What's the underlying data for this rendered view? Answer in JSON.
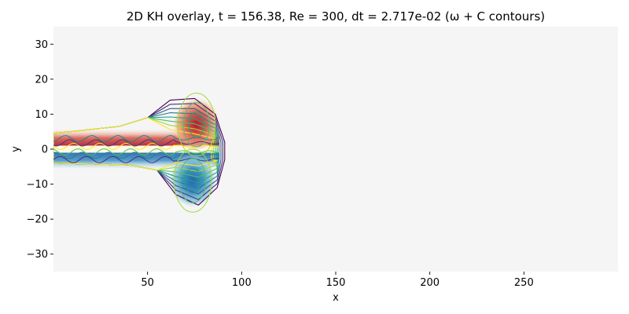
{
  "chart_data": {
    "type": "heatmap",
    "title": "2D KH overlay, t =  156.38, Re = 300, dt = 2.717e-02 (ω + C contours)",
    "xlabel": "x",
    "ylabel": "y",
    "xlim": [
      0,
      300
    ],
    "ylim": [
      -35,
      35
    ],
    "xticks": [
      50,
      100,
      150,
      200,
      250
    ],
    "yticks": [
      -30,
      -20,
      -10,
      0,
      10,
      20,
      30
    ],
    "grid": false,
    "colormap": "Spectral (vorticity ω) with contour lines of scalar C",
    "background_color": "#f5f5f5",
    "features": {
      "positive_vortex": {
        "x": 76,
        "y": 7,
        "sign": "positive",
        "color": "#c0262b"
      },
      "negative_vortex": {
        "x": 74,
        "y": -9,
        "sign": "negative",
        "color": "#3b82b9"
      },
      "shear_layer_y": 0,
      "mushroom_front_x": 92
    }
  }
}
